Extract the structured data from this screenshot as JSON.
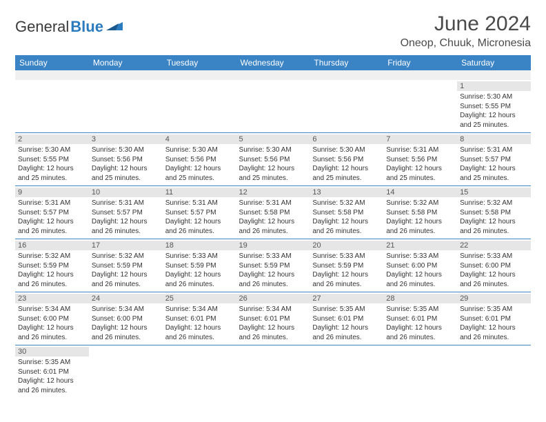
{
  "logo": {
    "text1": "General",
    "text2": "Blue"
  },
  "title": "June 2024",
  "location": "Oneop, Chuuk, Micronesia",
  "colors": {
    "header_bg": "#3a83c4",
    "header_fg": "#ffffff",
    "daynum_bg": "#e6e6e6",
    "row_divider": "#3a83c4",
    "logo_blue": "#2b7bbf",
    "text": "#333333",
    "title_color": "#4a4a4a"
  },
  "weekdays": [
    "Sunday",
    "Monday",
    "Tuesday",
    "Wednesday",
    "Thursday",
    "Friday",
    "Saturday"
  ],
  "weeks": [
    [
      null,
      null,
      null,
      null,
      null,
      null,
      {
        "d": "1",
        "sr": "Sunrise: 5:30 AM",
        "ss": "Sunset: 5:55 PM",
        "dl1": "Daylight: 12 hours",
        "dl2": "and 25 minutes."
      }
    ],
    [
      {
        "d": "2",
        "sr": "Sunrise: 5:30 AM",
        "ss": "Sunset: 5:55 PM",
        "dl1": "Daylight: 12 hours",
        "dl2": "and 25 minutes."
      },
      {
        "d": "3",
        "sr": "Sunrise: 5:30 AM",
        "ss": "Sunset: 5:56 PM",
        "dl1": "Daylight: 12 hours",
        "dl2": "and 25 minutes."
      },
      {
        "d": "4",
        "sr": "Sunrise: 5:30 AM",
        "ss": "Sunset: 5:56 PM",
        "dl1": "Daylight: 12 hours",
        "dl2": "and 25 minutes."
      },
      {
        "d": "5",
        "sr": "Sunrise: 5:30 AM",
        "ss": "Sunset: 5:56 PM",
        "dl1": "Daylight: 12 hours",
        "dl2": "and 25 minutes."
      },
      {
        "d": "6",
        "sr": "Sunrise: 5:30 AM",
        "ss": "Sunset: 5:56 PM",
        "dl1": "Daylight: 12 hours",
        "dl2": "and 25 minutes."
      },
      {
        "d": "7",
        "sr": "Sunrise: 5:31 AM",
        "ss": "Sunset: 5:56 PM",
        "dl1": "Daylight: 12 hours",
        "dl2": "and 25 minutes."
      },
      {
        "d": "8",
        "sr": "Sunrise: 5:31 AM",
        "ss": "Sunset: 5:57 PM",
        "dl1": "Daylight: 12 hours",
        "dl2": "and 25 minutes."
      }
    ],
    [
      {
        "d": "9",
        "sr": "Sunrise: 5:31 AM",
        "ss": "Sunset: 5:57 PM",
        "dl1": "Daylight: 12 hours",
        "dl2": "and 26 minutes."
      },
      {
        "d": "10",
        "sr": "Sunrise: 5:31 AM",
        "ss": "Sunset: 5:57 PM",
        "dl1": "Daylight: 12 hours",
        "dl2": "and 26 minutes."
      },
      {
        "d": "11",
        "sr": "Sunrise: 5:31 AM",
        "ss": "Sunset: 5:57 PM",
        "dl1": "Daylight: 12 hours",
        "dl2": "and 26 minutes."
      },
      {
        "d": "12",
        "sr": "Sunrise: 5:31 AM",
        "ss": "Sunset: 5:58 PM",
        "dl1": "Daylight: 12 hours",
        "dl2": "and 26 minutes."
      },
      {
        "d": "13",
        "sr": "Sunrise: 5:32 AM",
        "ss": "Sunset: 5:58 PM",
        "dl1": "Daylight: 12 hours",
        "dl2": "and 26 minutes."
      },
      {
        "d": "14",
        "sr": "Sunrise: 5:32 AM",
        "ss": "Sunset: 5:58 PM",
        "dl1": "Daylight: 12 hours",
        "dl2": "and 26 minutes."
      },
      {
        "d": "15",
        "sr": "Sunrise: 5:32 AM",
        "ss": "Sunset: 5:58 PM",
        "dl1": "Daylight: 12 hours",
        "dl2": "and 26 minutes."
      }
    ],
    [
      {
        "d": "16",
        "sr": "Sunrise: 5:32 AM",
        "ss": "Sunset: 5:59 PM",
        "dl1": "Daylight: 12 hours",
        "dl2": "and 26 minutes."
      },
      {
        "d": "17",
        "sr": "Sunrise: 5:32 AM",
        "ss": "Sunset: 5:59 PM",
        "dl1": "Daylight: 12 hours",
        "dl2": "and 26 minutes."
      },
      {
        "d": "18",
        "sr": "Sunrise: 5:33 AM",
        "ss": "Sunset: 5:59 PM",
        "dl1": "Daylight: 12 hours",
        "dl2": "and 26 minutes."
      },
      {
        "d": "19",
        "sr": "Sunrise: 5:33 AM",
        "ss": "Sunset: 5:59 PM",
        "dl1": "Daylight: 12 hours",
        "dl2": "and 26 minutes."
      },
      {
        "d": "20",
        "sr": "Sunrise: 5:33 AM",
        "ss": "Sunset: 5:59 PM",
        "dl1": "Daylight: 12 hours",
        "dl2": "and 26 minutes."
      },
      {
        "d": "21",
        "sr": "Sunrise: 5:33 AM",
        "ss": "Sunset: 6:00 PM",
        "dl1": "Daylight: 12 hours",
        "dl2": "and 26 minutes."
      },
      {
        "d": "22",
        "sr": "Sunrise: 5:33 AM",
        "ss": "Sunset: 6:00 PM",
        "dl1": "Daylight: 12 hours",
        "dl2": "and 26 minutes."
      }
    ],
    [
      {
        "d": "23",
        "sr": "Sunrise: 5:34 AM",
        "ss": "Sunset: 6:00 PM",
        "dl1": "Daylight: 12 hours",
        "dl2": "and 26 minutes."
      },
      {
        "d": "24",
        "sr": "Sunrise: 5:34 AM",
        "ss": "Sunset: 6:00 PM",
        "dl1": "Daylight: 12 hours",
        "dl2": "and 26 minutes."
      },
      {
        "d": "25",
        "sr": "Sunrise: 5:34 AM",
        "ss": "Sunset: 6:01 PM",
        "dl1": "Daylight: 12 hours",
        "dl2": "and 26 minutes."
      },
      {
        "d": "26",
        "sr": "Sunrise: 5:34 AM",
        "ss": "Sunset: 6:01 PM",
        "dl1": "Daylight: 12 hours",
        "dl2": "and 26 minutes."
      },
      {
        "d": "27",
        "sr": "Sunrise: 5:35 AM",
        "ss": "Sunset: 6:01 PM",
        "dl1": "Daylight: 12 hours",
        "dl2": "and 26 minutes."
      },
      {
        "d": "28",
        "sr": "Sunrise: 5:35 AM",
        "ss": "Sunset: 6:01 PM",
        "dl1": "Daylight: 12 hours",
        "dl2": "and 26 minutes."
      },
      {
        "d": "29",
        "sr": "Sunrise: 5:35 AM",
        "ss": "Sunset: 6:01 PM",
        "dl1": "Daylight: 12 hours",
        "dl2": "and 26 minutes."
      }
    ],
    [
      {
        "d": "30",
        "sr": "Sunrise: 5:35 AM",
        "ss": "Sunset: 6:01 PM",
        "dl1": "Daylight: 12 hours",
        "dl2": "and 26 minutes."
      },
      null,
      null,
      null,
      null,
      null,
      null
    ]
  ]
}
